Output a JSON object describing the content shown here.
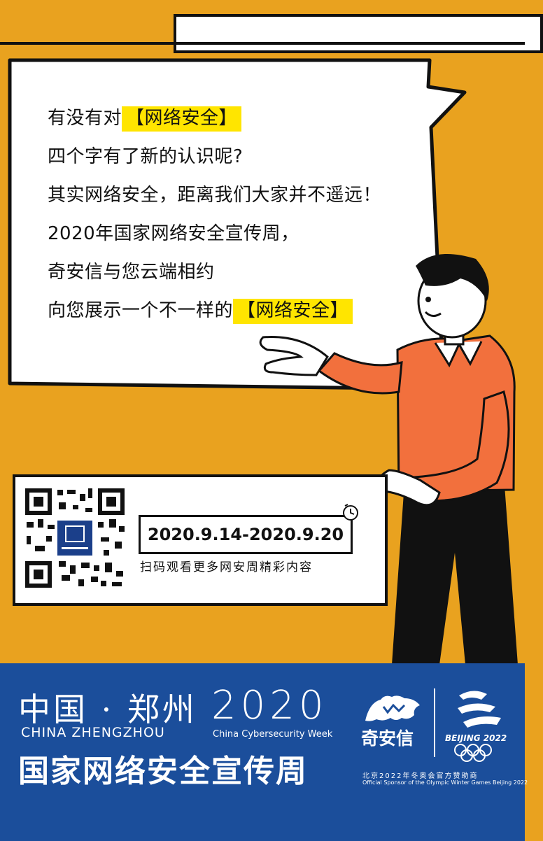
{
  "message_lines": [
    {
      "pre": "有没有对",
      "highlight": "【网络安全】"
    },
    {
      "pre": "四个字有了新的认识呢?",
      "highlight": ""
    },
    {
      "pre": "其实网络安全，距离我们大家并不遥远！",
      "highlight": ""
    },
    {
      "pre": "2020年国家网络安全宣传周，",
      "highlight": ""
    },
    {
      "pre": "奇安信与您云端相约",
      "highlight": ""
    },
    {
      "pre": "向您展示一个不一样的",
      "highlight": "【网络安全】"
    }
  ],
  "event": {
    "dates": "2020.9.14-2020.9.20",
    "scan_prompt": "扫码观看更多网安周精彩内容"
  },
  "banner": {
    "city_cn": "中国 · 郑州",
    "city_en": "CHINA ZHENGZHOU",
    "year": "2020",
    "week_en": "China Cybersecurity Week",
    "week_cn": "国家网络安全宣传周",
    "sponsor_name": "奇安信",
    "olympic_name": "BEIJING 2022",
    "sponsor_note_cn": "北京2022年冬奥会官方赞助商",
    "sponsor_note_en": "Official Sponsor of the Olympic Winter Games Beijing 2022"
  },
  "colors": {
    "background": "#E9A21F",
    "highlight": "#FFE500",
    "banner": "#1B4E9B",
    "shirt": "#F2703D"
  },
  "icons": [
    "qr-code-icon",
    "clock-icon",
    "qianxin-logo-icon",
    "beijing-2022-emblem-icon",
    "olympic-rings-icon"
  ]
}
